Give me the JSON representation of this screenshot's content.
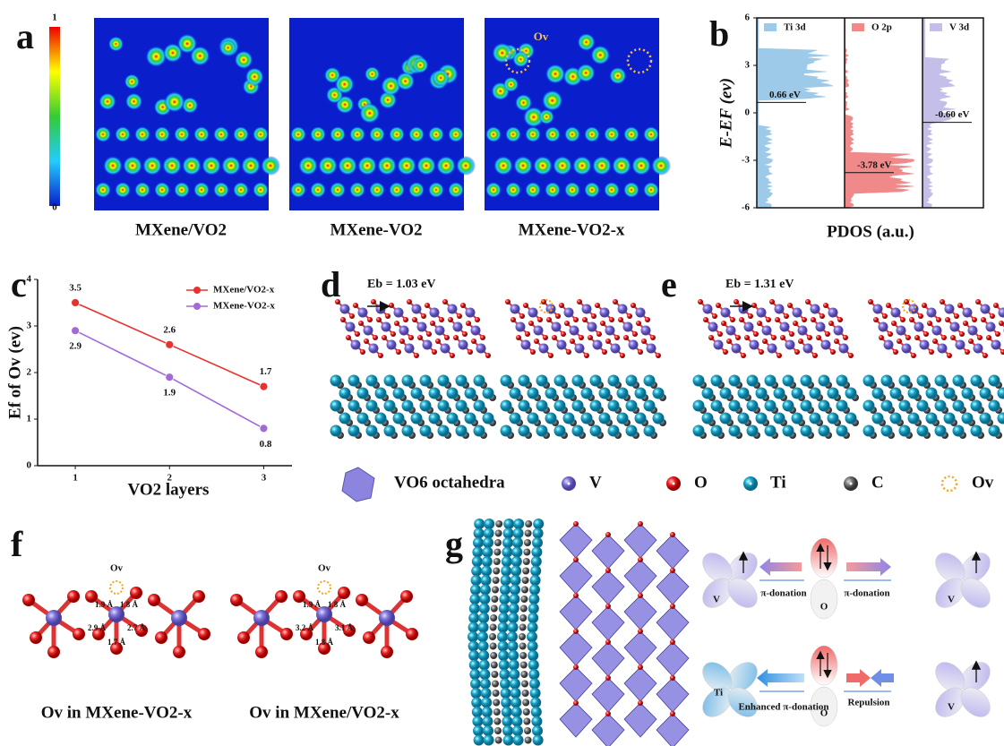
{
  "chart_data": [
    {
      "type": "pdos",
      "ylabel": "E-EF (ev)",
      "xlabel": "PDOS (a.u.)",
      "ylim": [
        -6,
        6
      ],
      "yticks": [
        -6,
        -3,
        0,
        3,
        6
      ],
      "series": [
        {
          "name": "Ti 3d",
          "color": "#9ecae9"
        },
        {
          "name": "O 2p",
          "color": "#f08a8a"
        },
        {
          "name": "V 3d",
          "color": "#c4bfe9"
        }
      ],
      "annotations": [
        {
          "text": "0.66 eV",
          "y": 0.66
        },
        {
          "text": "-3.78 eV",
          "y": -3.78
        },
        {
          "text": "-0.60 eV",
          "y": -0.6
        }
      ]
    },
    {
      "type": "line",
      "ylabel": "Ef of Ov (ev)",
      "xlabel": "VO2 layers",
      "x": [
        1,
        2,
        3
      ],
      "xlim": [
        0.6,
        3.3
      ],
      "xticks": [
        1,
        2,
        3
      ],
      "ylim": [
        0,
        4
      ],
      "yticks": [
        0,
        1,
        2,
        3,
        4
      ],
      "series": [
        {
          "name": "MXene/VO2-x",
          "color": "#e8322e",
          "values": [
            3.5,
            2.6,
            1.7
          ]
        },
        {
          "name": "MXene-VO2-x",
          "color": "#a26ad8",
          "values": [
            2.9,
            1.9,
            0.8
          ]
        }
      ]
    }
  ],
  "panels": {
    "a": {
      "label": "a",
      "colorbar": {
        "max": 1,
        "min": 0
      },
      "captions": [
        "MXene/VO2",
        "MXene-VO2",
        "MXene-VO2-x"
      ],
      "marker": "Ov"
    },
    "b": {
      "label": "b"
    },
    "c": {
      "label": "c"
    },
    "d": {
      "label": "d",
      "energy": "Eb = 1.03 eV"
    },
    "e": {
      "label": "e",
      "energy": "Eb = 1.31 eV"
    },
    "legend": [
      "VO6 octahedra",
      "V",
      "O",
      "Ti",
      "C",
      "Ov"
    ],
    "f": {
      "label": "f",
      "marker": "Ov",
      "bonds_left": [
        "1.9 Å",
        "1.8 Å",
        "2.9 Å",
        "2.7 Å",
        "1.7 Å"
      ],
      "bonds_right": [
        "1.9 Å",
        "1.8 Å",
        "3.2 Å",
        "3.1 Å",
        "1.8 Å"
      ],
      "captions": [
        "Ov in MXene-VO2-x",
        "Ov in MXene/VO2-x"
      ]
    },
    "g": {
      "label": "g",
      "top": [
        "V",
        "O",
        "V",
        "π-donation",
        "π-donation"
      ],
      "bottom": [
        "Ti",
        "O",
        "V",
        "Enhanced π-donation",
        "Repulsion"
      ]
    }
  }
}
